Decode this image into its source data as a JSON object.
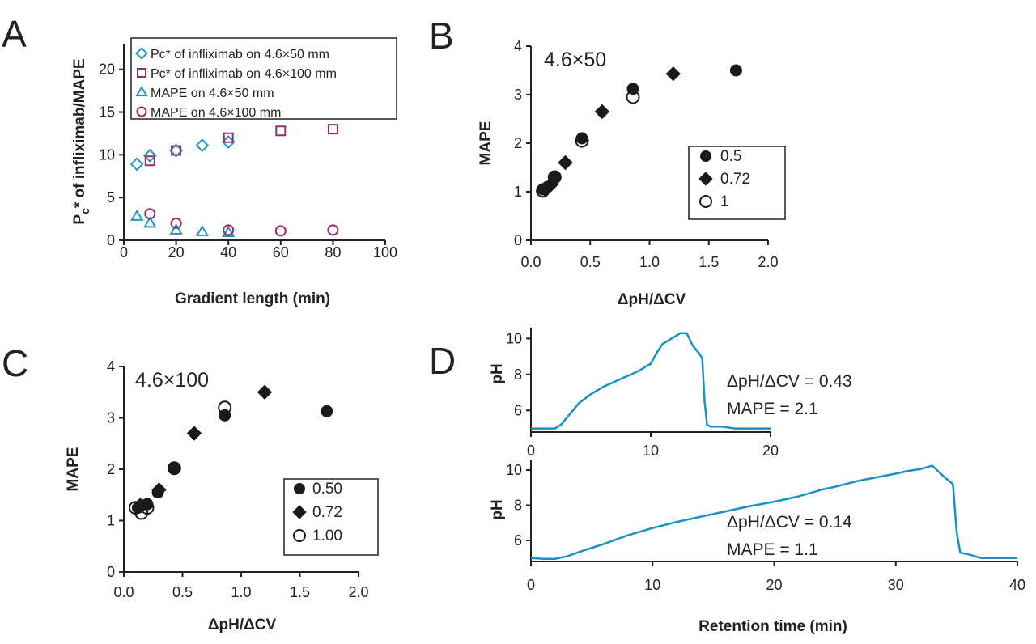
{
  "panels": {
    "a": "A",
    "b": "B",
    "c": "C",
    "d": "D"
  },
  "colors": {
    "teal": "#1e98c2",
    "maroon": "#9b2c6b",
    "black": "#1a1a1a",
    "line": "#1a90c4"
  },
  "chart_data": [
    {
      "panel": "A",
      "type": "scatter",
      "xlabel": "Gradient length (min)",
      "ylabel_parts": {
        "p": "P",
        "sub": "c",
        "rest": "* of infliximab/MAPE"
      },
      "xlim": [
        0,
        100
      ],
      "ylim": [
        0,
        23
      ],
      "xticks": [
        "0",
        "20",
        "40",
        "60",
        "80",
        "100"
      ],
      "yticks": [
        "0",
        "5",
        "10",
        "15",
        "20"
      ],
      "legend_position": "top",
      "series": [
        {
          "name": "Pc* of infliximab on 4.6×50 mm",
          "marker": "diamond-open",
          "color": "#1e98c2",
          "x": [
            5,
            10,
            20,
            30,
            40
          ],
          "y": [
            8.9,
            9.9,
            10.5,
            11.1,
            11.5
          ]
        },
        {
          "name": "Pc* of infliximab on 4.6×100 mm",
          "marker": "square-open",
          "color": "#9b2c6b",
          "x": [
            10,
            20,
            40,
            60,
            80
          ],
          "y": [
            9.3,
            10.5,
            12.0,
            12.8,
            13.0
          ]
        },
        {
          "name": "MAPE on 4.6×50 mm",
          "marker": "triangle-open",
          "color": "#1e98c2",
          "x": [
            5,
            10,
            20,
            30,
            40
          ],
          "y": [
            2.8,
            2.0,
            1.2,
            1.0,
            0.9
          ]
        },
        {
          "name": "MAPE on 4.6×100 mm",
          "marker": "circle-open",
          "color": "#9b2c6b",
          "x": [
            10,
            20,
            40,
            60,
            80
          ],
          "y": [
            3.1,
            2.0,
            1.2,
            1.1,
            1.2
          ]
        }
      ]
    },
    {
      "panel": "B",
      "type": "scatter",
      "annotation": "4.6×50",
      "xlabel": "ΔpH/ΔCV",
      "ylabel": "MAPE",
      "xlim": [
        0,
        2
      ],
      "ylim": [
        0,
        4
      ],
      "xticks": [
        "0.0",
        "0.5",
        "1.0",
        "1.5",
        "2.0"
      ],
      "yticks": [
        "0",
        "1",
        "2",
        "3",
        "4"
      ],
      "legend_position": "right",
      "series": [
        {
          "name": "0.5",
          "marker": "circle-filled",
          "color": "#1a1a1a",
          "x": [
            0.1,
            0.14,
            0.2,
            0.43,
            0.86,
            1.73
          ],
          "y": [
            1.05,
            1.1,
            1.3,
            2.1,
            3.12,
            3.5
          ]
        },
        {
          "name": "0.72",
          "marker": "diamond-filled",
          "color": "#1a1a1a",
          "x": [
            0.12,
            0.17,
            0.29,
            0.6,
            1.2
          ],
          "y": [
            1.05,
            1.15,
            1.6,
            2.65,
            3.43
          ]
        },
        {
          "name": "1",
          "marker": "circle-open",
          "color": "#1a1a1a",
          "x": [
            0.1,
            0.2,
            0.43,
            0.86
          ],
          "y": [
            1.02,
            1.3,
            2.05,
            2.95
          ]
        }
      ]
    },
    {
      "panel": "C",
      "type": "scatter",
      "annotation": "4.6×100",
      "xlabel": "ΔpH/ΔCV",
      "ylabel": "MAPE",
      "xlim": [
        0,
        2
      ],
      "ylim": [
        0,
        4
      ],
      "xticks": [
        "0.0",
        "0.5",
        "1.0",
        "1.5",
        "2.0"
      ],
      "yticks": [
        "0",
        "1",
        "2",
        "3",
        "4"
      ],
      "legend_position": "right",
      "series": [
        {
          "name": "0.50",
          "marker": "circle-filled",
          "color": "#1a1a1a",
          "x": [
            0.12,
            0.15,
            0.2,
            0.29,
            0.43,
            0.86,
            1.73
          ],
          "y": [
            1.25,
            1.3,
            1.32,
            1.55,
            2.02,
            3.05,
            3.13
          ]
        },
        {
          "name": "0.72",
          "marker": "diamond-filled",
          "color": "#1a1a1a",
          "x": [
            0.14,
            0.3,
            0.6,
            1.2
          ],
          "y": [
            1.3,
            1.6,
            2.7,
            3.5
          ]
        },
        {
          "name": "1.00",
          "marker": "circle-open",
          "color": "#1a1a1a",
          "x": [
            0.1,
            0.15,
            0.2,
            0.43,
            0.86
          ],
          "y": [
            1.25,
            1.15,
            1.25,
            2.02,
            3.2
          ]
        }
      ]
    },
    {
      "panel": "D",
      "type": "line",
      "ylabel": "pH",
      "xlim": [
        0,
        20
      ],
      "ylim": [
        4.8,
        10.6
      ],
      "xticks": [
        "0",
        "10",
        "20"
      ],
      "yticks": [
        "6",
        "8",
        "10"
      ],
      "annotations": [
        "ΔpH/ΔCV = 0.43",
        "MAPE = 2.1"
      ],
      "x": [
        0,
        1,
        2,
        2.5,
        3,
        4,
        5,
        6,
        7,
        8,
        9,
        10,
        10.5,
        11,
        12,
        12.5,
        13,
        13.5,
        14,
        14.3,
        14.5,
        14.7,
        15,
        16,
        17,
        18,
        20
      ],
      "y": [
        5.0,
        5.0,
        5.0,
        5.2,
        5.6,
        6.4,
        6.9,
        7.3,
        7.6,
        7.9,
        8.2,
        8.6,
        9.2,
        9.7,
        10.1,
        10.3,
        10.3,
        9.6,
        9.2,
        8.9,
        6.5,
        5.2,
        5.1,
        5.1,
        5.0,
        5.0,
        5.0
      ]
    },
    {
      "panel": "D",
      "type": "line",
      "ylabel": "pH",
      "xlabel": "Retention time (min)",
      "xlim": [
        0,
        40
      ],
      "ylim": [
        4.8,
        10.6
      ],
      "xticks": [
        "0",
        "10",
        "20",
        "30",
        "40"
      ],
      "yticks": [
        "6",
        "8",
        "10"
      ],
      "annotations": [
        "ΔpH/ΔCV = 0.14",
        "MAPE = 1.1"
      ],
      "x": [
        0,
        1,
        2,
        3,
        4,
        6,
        8,
        10,
        12,
        15,
        18,
        20,
        22,
        24,
        25,
        27,
        30,
        31,
        32,
        33,
        34,
        34.7,
        35,
        35.3,
        36,
        37,
        40
      ],
      "y": [
        5.0,
        4.95,
        4.95,
        5.1,
        5.35,
        5.8,
        6.3,
        6.7,
        7.05,
        7.5,
        7.95,
        8.2,
        8.5,
        8.9,
        9.05,
        9.4,
        9.8,
        9.95,
        10.05,
        10.25,
        9.6,
        9.2,
        6.5,
        5.3,
        5.2,
        5.0,
        5.0
      ]
    }
  ]
}
